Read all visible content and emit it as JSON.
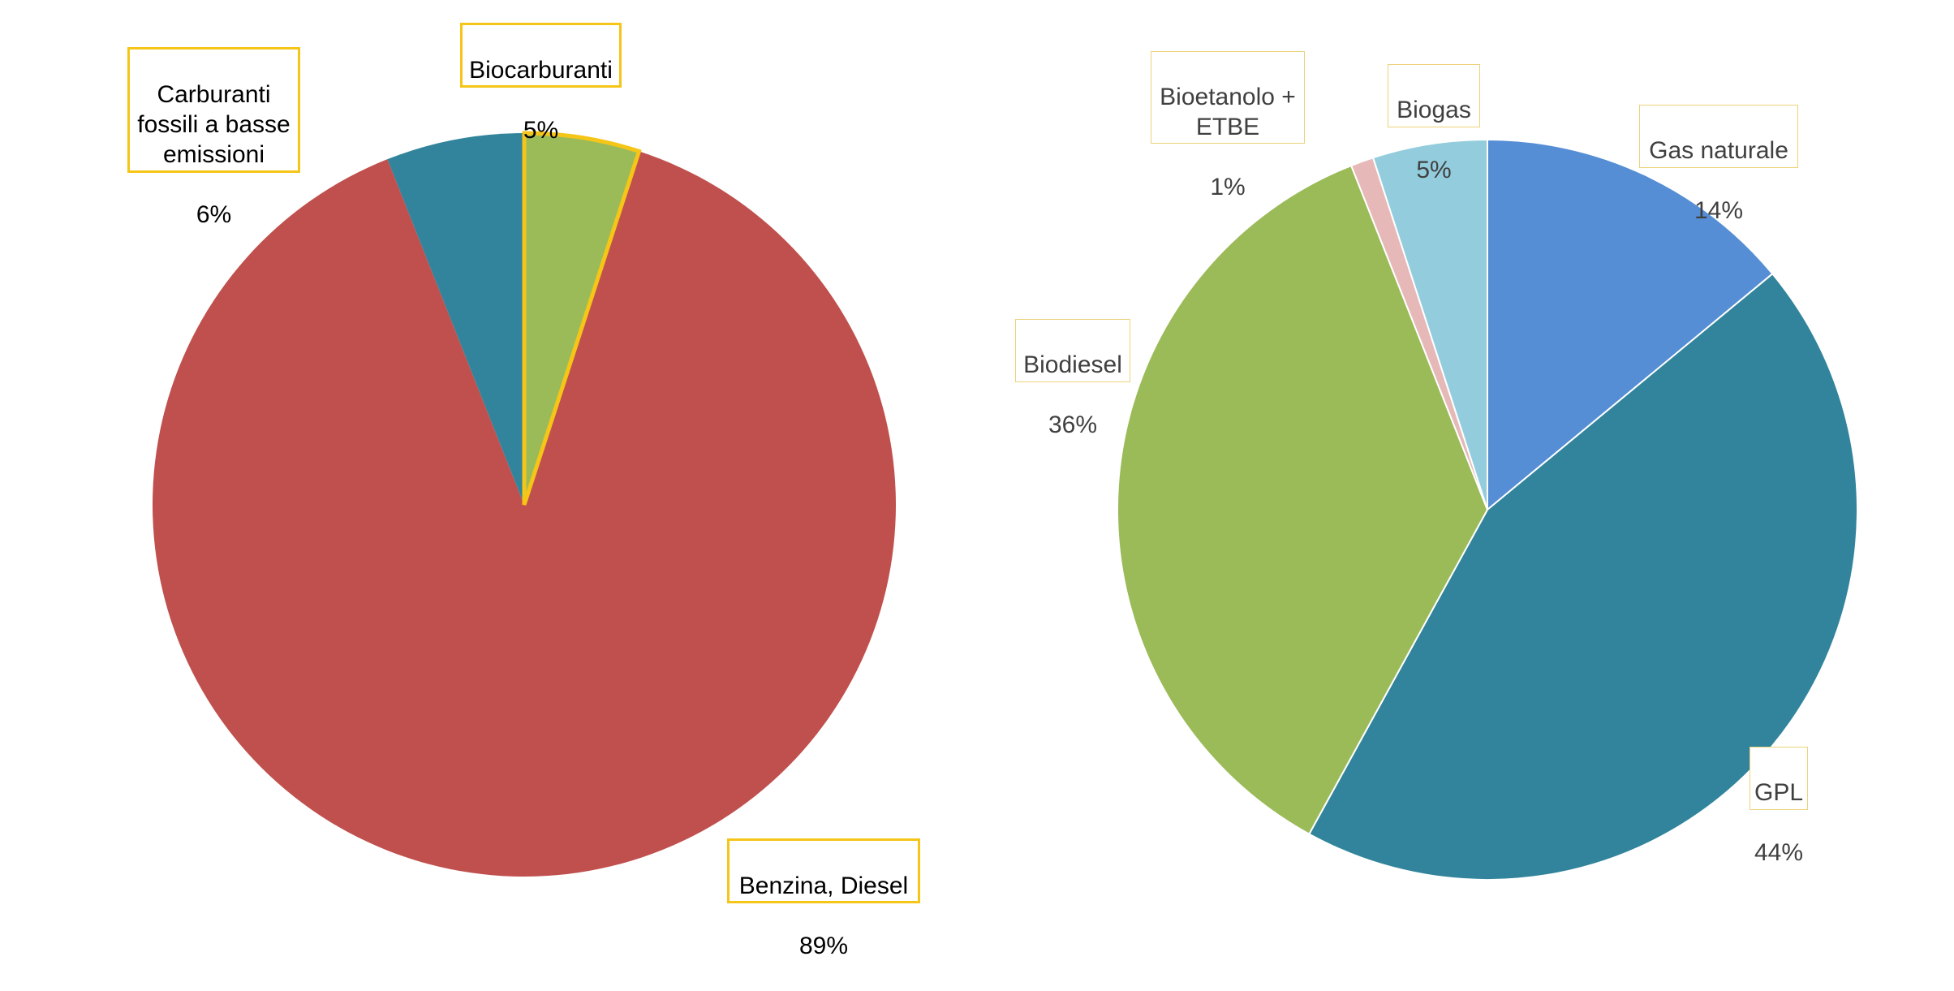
{
  "chart_data": [
    {
      "type": "pie",
      "slices": [
        {
          "label": "Biocarburanti",
          "value": 5,
          "value_label": "5%",
          "color": "#9bbb59",
          "highlight_border": "#f5c518"
        },
        {
          "label": "Benzina, Diesel",
          "value": 89,
          "value_label": "89%",
          "color": "#c0504d"
        },
        {
          "label": "Carburanti fossili a basse emissioni",
          "value": 6,
          "value_label": "6%",
          "color": "#31849b"
        }
      ],
      "label_border_color": "#f5c518"
    },
    {
      "type": "pie",
      "slices": [
        {
          "label": "Gas naturale",
          "value": 14,
          "value_label": "14%",
          "color": "#558ed5"
        },
        {
          "label": "GPL",
          "value": 44,
          "value_label": "44%",
          "color": "#31849b"
        },
        {
          "label": "Biodiesel",
          "value": 36,
          "value_label": "36%",
          "color": "#9bbb59"
        },
        {
          "label": "Bioetanolo + ETBE",
          "value": 1,
          "value_label": "1%",
          "color": "#e6b9b8"
        },
        {
          "label": "Biogas",
          "value": 5,
          "value_label": "5%",
          "color": "#93cddd"
        }
      ],
      "label_border_color": "#ecd27a"
    }
  ],
  "labels": {
    "left": {
      "bio": {
        "name": "Biocarburanti",
        "pct": "5%"
      },
      "fossil": {
        "name": "Benzina, Diesel",
        "pct": "89%"
      },
      "lowemis": {
        "name": "Carburanti\nfossili a basse\nemissioni",
        "pct": "6%"
      }
    },
    "right": {
      "gas": {
        "name": "Gas naturale",
        "pct": "14%"
      },
      "gpl": {
        "name": "GPL",
        "pct": "44%"
      },
      "biodiesel": {
        "name": "Biodiesel",
        "pct": "36%"
      },
      "bioetanolo": {
        "name": "Bioetanolo  +\nETBE",
        "pct": "1%"
      },
      "biogas": {
        "name": "Biogas",
        "pct": "5%"
      }
    }
  }
}
